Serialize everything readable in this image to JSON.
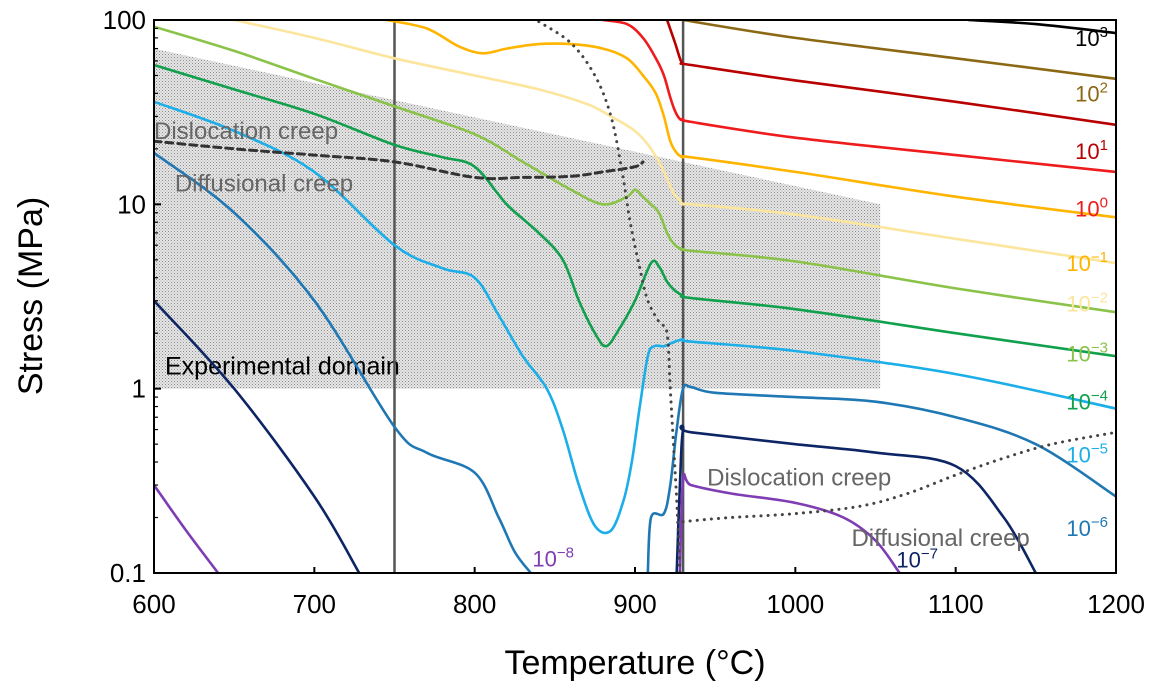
{
  "chart_data": {
    "type": "line",
    "xlabel": "Temperature (°C)",
    "ylabel": "Stress (MPa)",
    "xlim": [
      600,
      1200
    ],
    "ylim": [
      0.1,
      100
    ],
    "y_scale": "log",
    "xticks": [
      600,
      700,
      800,
      900,
      1000,
      1100,
      1200
    ],
    "yticks": [
      {
        "value": 0.1,
        "label": "0.1"
      },
      {
        "value": 1,
        "label": "1"
      },
      {
        "value": 10,
        "label": "10"
      },
      {
        "value": 100,
        "label": "100"
      }
    ],
    "experimental_domain": {
      "label": "Experimental domain",
      "x": [
        600,
        1053
      ],
      "y_bottom": 1.0,
      "top_left": 70,
      "top_right": 10
    },
    "vertical_lines": [
      750,
      930
    ],
    "labels": [
      {
        "text": "Dislocation creep",
        "x": 600,
        "y": 25,
        "color": "#666666"
      },
      {
        "text": "Diffusional creep",
        "x": 613,
        "y": 13,
        "color": "#666666"
      },
      {
        "text": "Dislocation creep",
        "x": 945,
        "y": 0.33,
        "color": "#666666"
      },
      {
        "text": "Diffusional creep",
        "x": 1035,
        "y": 0.155,
        "color": "#666666"
      }
    ],
    "boundaries": [
      {
        "style": "dashed",
        "color": "#333333",
        "points": [
          [
            600,
            22
          ],
          [
            650,
            20
          ],
          [
            700,
            18.5
          ],
          [
            750,
            17
          ],
          [
            800,
            14
          ],
          [
            830,
            14
          ],
          [
            860,
            14.2
          ],
          [
            880,
            15
          ],
          [
            900,
            16
          ],
          [
            905,
            17
          ]
        ]
      },
      {
        "style": "dotted",
        "color": "#444444",
        "points": [
          [
            840,
            98
          ],
          [
            860,
            75
          ],
          [
            875,
            50
          ],
          [
            885,
            30
          ],
          [
            892,
            15
          ],
          [
            897,
            8
          ],
          [
            903,
            4.5
          ],
          [
            908,
            3
          ],
          [
            915,
            2.3
          ],
          [
            920,
            2
          ],
          [
            922,
            1
          ],
          [
            924,
            0.5
          ],
          [
            926,
            0.25
          ],
          [
            928,
            0.1
          ]
        ]
      },
      {
        "style": "dotted",
        "color": "#444444",
        "points": [
          [
            930,
            0.19
          ],
          [
            960,
            0.2
          ],
          [
            1000,
            0.21
          ],
          [
            1040,
            0.23
          ],
          [
            1070,
            0.27
          ],
          [
            1100,
            0.34
          ],
          [
            1130,
            0.42
          ],
          [
            1160,
            0.5
          ],
          [
            1200,
            0.58
          ]
        ]
      }
    ],
    "series": [
      {
        "name": "10³",
        "sup": "3",
        "color": "#000000",
        "label_y": 80,
        "points": [
          [
            1108,
            100
          ],
          [
            1150,
            95
          ],
          [
            1200,
            85
          ]
        ]
      },
      {
        "name": "10²",
        "sup": "2",
        "color": "#8B6914",
        "label_y": 40,
        "points": [
          [
            930,
            100
          ],
          [
            1000,
            80
          ],
          [
            1100,
            62
          ],
          [
            1200,
            48
          ]
        ]
      },
      {
        "name": "10¹",
        "sup": "1",
        "color": "#B80000",
        "label_y": 19.5,
        "points": [
          [
            920,
            100
          ],
          [
            925,
            75
          ],
          [
            928,
            62
          ],
          [
            930,
            58
          ],
          [
            935,
            57
          ],
          [
            1000,
            47
          ],
          [
            1100,
            36
          ],
          [
            1200,
            27
          ]
        ]
      },
      {
        "name": "10⁰",
        "sup": "0",
        "color": "#EE1C1C",
        "label_y": 9.5,
        "points": [
          [
            880,
            100
          ],
          [
            895,
            95
          ],
          [
            905,
            80
          ],
          [
            913,
            62
          ],
          [
            918,
            50
          ],
          [
            922,
            38
          ],
          [
            925,
            32
          ],
          [
            928,
            29
          ],
          [
            930,
            29
          ],
          [
            935,
            28
          ],
          [
            1000,
            23
          ],
          [
            1100,
            18.5
          ],
          [
            1200,
            15
          ]
        ]
      },
      {
        "name": "10⁻¹",
        "sup": "−1",
        "color": "#FFB400",
        "label_y": 4.8,
        "points": [
          [
            745,
            100
          ],
          [
            770,
            90
          ],
          [
            790,
            72
          ],
          [
            805,
            66
          ],
          [
            820,
            70
          ],
          [
            840,
            74
          ],
          [
            860,
            74
          ],
          [
            880,
            70
          ],
          [
            895,
            62
          ],
          [
            905,
            50
          ],
          [
            913,
            40
          ],
          [
            918,
            30
          ],
          [
            922,
            22
          ],
          [
            926,
            19
          ],
          [
            930,
            18
          ],
          [
            935,
            18
          ],
          [
            1000,
            15
          ],
          [
            1100,
            11
          ],
          [
            1200,
            8.5
          ]
        ]
      },
      {
        "name": "10⁻²",
        "sup": "−2",
        "color": "#FCE59C",
        "label_y": 2.9,
        "points": [
          [
            650,
            100
          ],
          [
            700,
            80
          ],
          [
            750,
            62
          ],
          [
            800,
            50
          ],
          [
            840,
            42
          ],
          [
            870,
            35
          ],
          [
            885,
            30
          ],
          [
            900,
            25
          ],
          [
            910,
            20
          ],
          [
            918,
            15
          ],
          [
            924,
            11.5
          ],
          [
            928,
            10.5
          ],
          [
            930,
            10
          ],
          [
            935,
            10
          ],
          [
            1000,
            8.8
          ],
          [
            1100,
            6.5
          ],
          [
            1200,
            4.8
          ]
        ]
      },
      {
        "name": "10⁻³",
        "sup": "−3",
        "color": "#8BC34A",
        "label_y": 1.55,
        "points": [
          [
            600,
            92
          ],
          [
            650,
            68
          ],
          [
            700,
            48
          ],
          [
            750,
            34
          ],
          [
            800,
            24
          ],
          [
            830,
            17
          ],
          [
            860,
            12
          ],
          [
            880,
            10
          ],
          [
            895,
            11
          ],
          [
            900,
            12
          ],
          [
            905,
            11
          ],
          [
            910,
            10
          ],
          [
            915,
            9
          ],
          [
            920,
            7
          ],
          [
            925,
            6
          ],
          [
            930,
            5.7
          ],
          [
            935,
            5.6
          ],
          [
            1000,
            4.9
          ],
          [
            1100,
            3.5
          ],
          [
            1200,
            2.6
          ]
        ]
      },
      {
        "name": "10⁻⁴",
        "sup": "−4",
        "color": "#11A04D",
        "label_y": 0.85,
        "points": [
          [
            600,
            57
          ],
          [
            650,
            42
          ],
          [
            700,
            31
          ],
          [
            750,
            21
          ],
          [
            780,
            18
          ],
          [
            800,
            16
          ],
          [
            820,
            10
          ],
          [
            840,
            7
          ],
          [
            855,
            5
          ],
          [
            865,
            3
          ],
          [
            875,
            2
          ],
          [
            882,
            1.7
          ],
          [
            890,
            2.1
          ],
          [
            900,
            3
          ],
          [
            910,
            4.8
          ],
          [
            915,
            4.6
          ],
          [
            920,
            3.8
          ],
          [
            925,
            3.4
          ],
          [
            930,
            3.2
          ],
          [
            935,
            3.1
          ],
          [
            1000,
            2.7
          ],
          [
            1100,
            2
          ],
          [
            1200,
            1.5
          ]
        ]
      },
      {
        "name": "10⁻⁵",
        "sup": "−5",
        "color": "#1BAEE8",
        "label_y": 0.44,
        "points": [
          [
            600,
            36
          ],
          [
            650,
            25
          ],
          [
            700,
            15
          ],
          [
            750,
            6.0
          ],
          [
            780,
            4.5
          ],
          [
            800,
            4
          ],
          [
            815,
            2.5
          ],
          [
            830,
            1.5
          ],
          [
            845,
            1
          ],
          [
            855,
            0.6
          ],
          [
            865,
            0.3
          ],
          [
            875,
            0.18
          ],
          [
            885,
            0.17
          ],
          [
            893,
            0.25
          ],
          [
            898,
            0.4
          ],
          [
            903,
            0.8
          ],
          [
            908,
            1.5
          ],
          [
            912,
            1.7
          ],
          [
            918,
            1.7
          ],
          [
            925,
            1.8
          ],
          [
            930,
            1.85
          ],
          [
            935,
            1.8
          ],
          [
            1000,
            1.6
          ],
          [
            1100,
            1.2
          ],
          [
            1200,
            0.78
          ]
        ]
      },
      {
        "name": "10⁻⁶",
        "sup": "−6",
        "color": "#1F78B4",
        "label_y": 0.175,
        "points": [
          [
            600,
            19
          ],
          [
            650,
            9
          ],
          [
            700,
            3
          ],
          [
            750,
            0.62
          ],
          [
            770,
            0.45
          ],
          [
            800,
            0.35
          ],
          [
            815,
            0.2
          ],
          [
            825,
            0.13
          ],
          [
            835,
            0.1
          ]
        ]
      },
      {
        "name": "10⁻⁶ (right)",
        "sup": "",
        "color": "#1F78B4",
        "points": [
          [
            908,
            0.1
          ],
          [
            910,
            0.2
          ],
          [
            918,
            0.21
          ],
          [
            922,
            0.3
          ],
          [
            926,
            0.6
          ],
          [
            930,
            1.0
          ],
          [
            935,
            1.02
          ],
          [
            950,
            0.95
          ],
          [
            1000,
            0.9
          ],
          [
            1050,
            0.85
          ],
          [
            1100,
            0.7
          ],
          [
            1150,
            0.5
          ],
          [
            1200,
            0.26
          ]
        ]
      },
      {
        "name": "10⁻⁷",
        "sup": "−7",
        "color": "#0D2565",
        "label_x": 1063,
        "label_y": 0.118,
        "points": [
          [
            600,
            3
          ],
          [
            650,
            1.0
          ],
          [
            700,
            0.26
          ],
          [
            728,
            0.1
          ]
        ]
      },
      {
        "name": "10⁻⁷ (right)",
        "sup": "",
        "color": "#0D2565",
        "points": [
          [
            926,
            0.1
          ],
          [
            928,
            0.3
          ],
          [
            930,
            0.6
          ],
          [
            935,
            0.58
          ],
          [
            1000,
            0.5
          ],
          [
            1050,
            0.45
          ],
          [
            1100,
            0.38
          ],
          [
            1130,
            0.2
          ],
          [
            1150,
            0.1
          ]
        ]
      },
      {
        "name": "10⁻⁸",
        "sup": "−8",
        "color": "#7E3DB2",
        "label_x": 836,
        "label_y": 0.12,
        "points": [
          [
            600,
            0.3
          ],
          [
            620,
            0.17
          ],
          [
            640,
            0.1
          ]
        ]
      },
      {
        "name": "10⁻⁸ (right)",
        "sup": "",
        "color": "#7E3DB2",
        "points": [
          [
            928,
            0.1
          ],
          [
            930,
            0.32
          ],
          [
            935,
            0.3
          ],
          [
            960,
            0.27
          ],
          [
            1000,
            0.24
          ],
          [
            1030,
            0.2
          ],
          [
            1050,
            0.15
          ],
          [
            1065,
            0.1
          ]
        ]
      }
    ]
  }
}
